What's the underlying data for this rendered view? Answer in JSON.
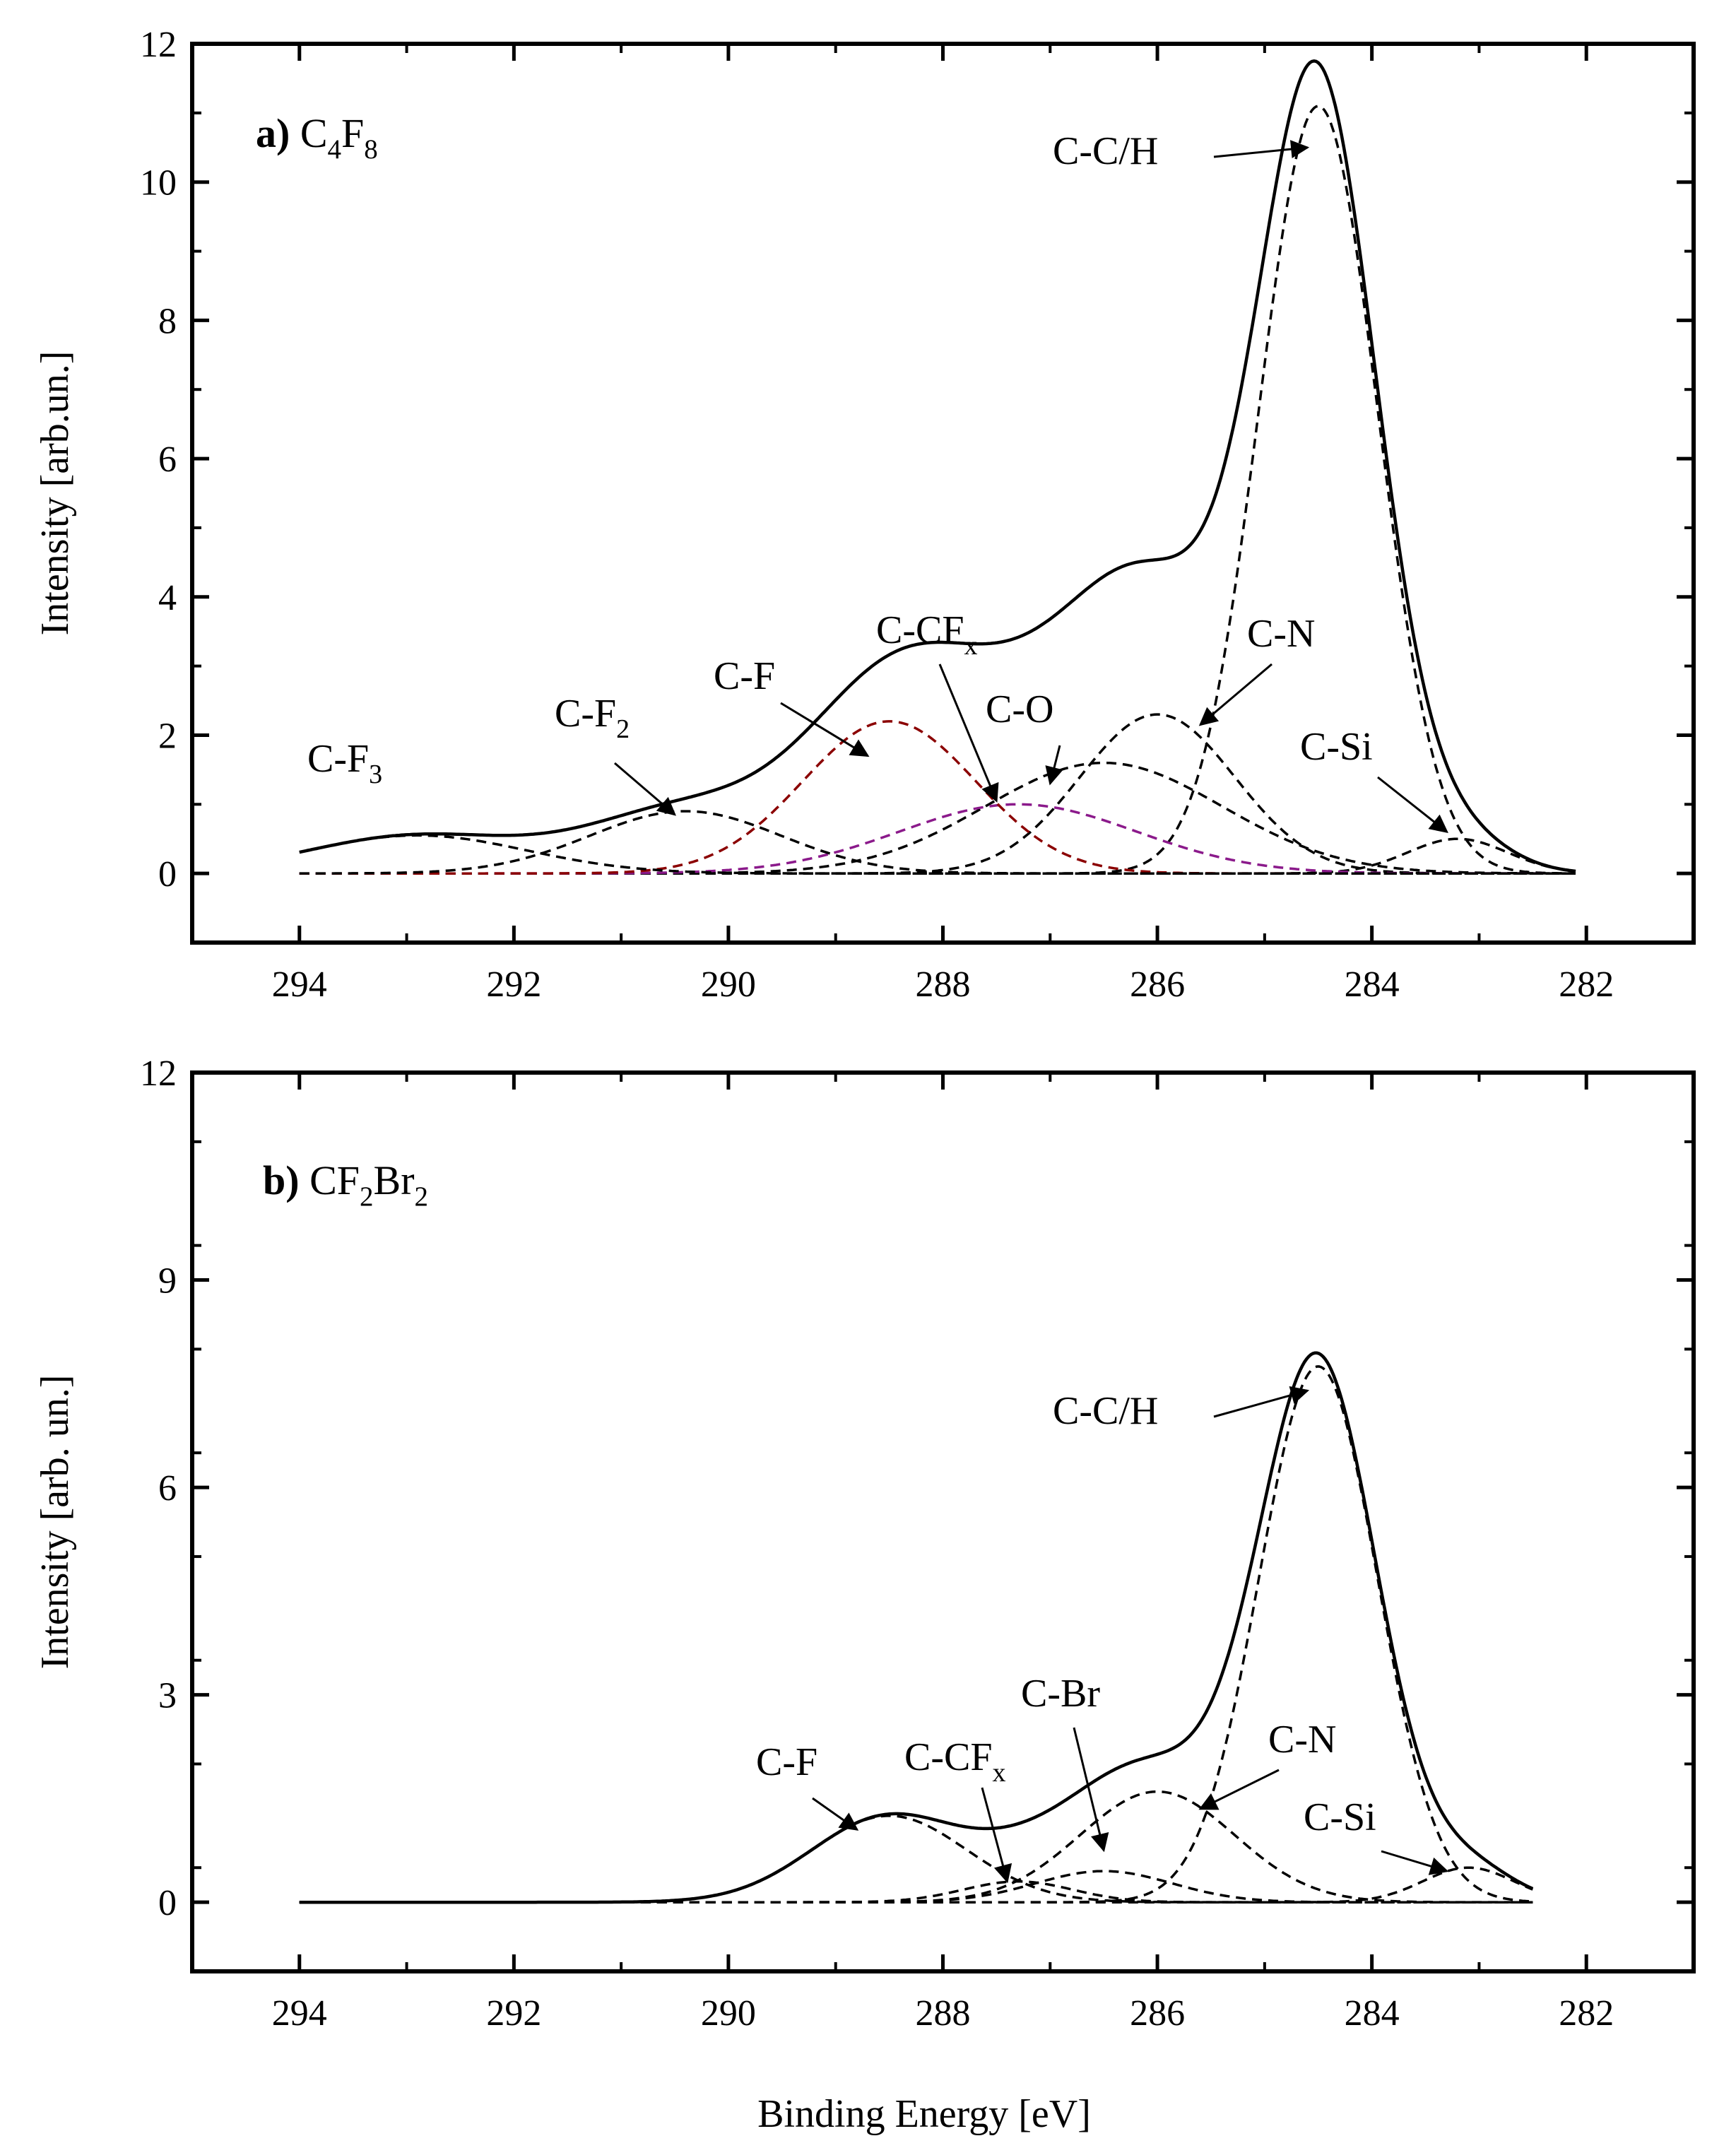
{
  "figure": {
    "xlabel": "Binding Energy [eV]"
  },
  "chart_data": [
    {
      "type": "line",
      "panel_letter": "a)",
      "panel_formula": [
        [
          "C",
          ""
        ],
        [
          "4",
          "sub"
        ],
        [
          "F",
          ""
        ],
        [
          "8",
          "sub"
        ]
      ],
      "xlabel": "Binding Energy [eV]",
      "ylabel": "Intensity [arb.un.]",
      "xlim": [
        295,
        281
      ],
      "ylim": [
        -1,
        12
      ],
      "xticks": [
        "294",
        "292",
        "290",
        "288",
        "286",
        "284",
        "282"
      ],
      "yticks": [
        "0",
        "2",
        "4",
        "6",
        "8",
        "10",
        "12"
      ],
      "x_range": [
        294,
        282.1
      ],
      "envelope": {
        "name": "Fit envelope",
        "color": "#000000"
      },
      "components": [
        {
          "name": "C-C/H",
          "center": 284.5,
          "height": 11.1,
          "fwhm": 1.3,
          "color": "#000000"
        },
        {
          "name": "C-Si",
          "center": 283.2,
          "height": 0.5,
          "fwhm": 1.1,
          "color": "#000000"
        },
        {
          "name": "C-N",
          "center": 286.0,
          "height": 2.3,
          "fwhm": 1.7,
          "color": "#000000"
        },
        {
          "name": "C-O",
          "center": 286.5,
          "height": 1.6,
          "fwhm": 2.6,
          "color": "#000000"
        },
        {
          "name": "C-CFx",
          "center": 287.3,
          "height": 1.0,
          "fwhm": 2.6,
          "color": "#8b1a8b"
        },
        {
          "name": "C-F",
          "center": 288.5,
          "height": 2.2,
          "fwhm": 1.9,
          "color": "#8b0000"
        },
        {
          "name": "C-F2",
          "center": 290.4,
          "height": 0.9,
          "fwhm": 2.1,
          "color": "#000000"
        },
        {
          "name": "C-F3",
          "center": 292.9,
          "height": 0.55,
          "fwhm": 2.4,
          "color": "#000000"
        }
      ],
      "annotations": [
        {
          "label": [
            [
              "C-C/H",
              ""
            ]
          ],
          "target": [
            284.6,
            10.5
          ]
        },
        {
          "label": [
            [
              "C-F",
              ""
            ],
            [
              "3",
              "sub"
            ]
          ],
          "target": null
        },
        {
          "label": [
            [
              "C-F",
              ""
            ],
            [
              "2",
              "sub"
            ]
          ],
          "target": [
            290.5,
            0.85
          ]
        },
        {
          "label": [
            [
              "C-F",
              ""
            ]
          ],
          "target": [
            288.7,
            1.7
          ]
        },
        {
          "label": [
            [
              "C-CF",
              ""
            ],
            [
              "x",
              "sub"
            ]
          ],
          "target": [
            287.5,
            1.05
          ]
        },
        {
          "label": [
            [
              "C-O",
              ""
            ]
          ],
          "target": [
            287.0,
            1.3
          ]
        },
        {
          "label": [
            [
              "C-N",
              ""
            ]
          ],
          "target": [
            285.6,
            2.15
          ]
        },
        {
          "label": [
            [
              "C-Si",
              ""
            ]
          ],
          "target": [
            283.3,
            0.6
          ]
        }
      ]
    },
    {
      "type": "line",
      "panel_letter": "b)",
      "panel_formula": [
        [
          "CF",
          ""
        ],
        [
          "2",
          "sub"
        ],
        [
          "Br",
          ""
        ],
        [
          "2",
          "sub"
        ]
      ],
      "xlabel": "Binding Energy [eV]",
      "ylabel": "Intensity [arb. un.]",
      "xlim": [
        295,
        281
      ],
      "ylim": [
        -1,
        12
      ],
      "xticks": [
        "294",
        "292",
        "290",
        "288",
        "286",
        "284",
        "282"
      ],
      "yticks": [
        "0",
        "3",
        "6",
        "9",
        "12"
      ],
      "x_range": [
        294,
        282.5
      ],
      "envelope": {
        "name": "Fit envelope",
        "color": "#000000"
      },
      "components": [
        {
          "name": "C-C/H",
          "center": 284.5,
          "height": 7.75,
          "fwhm": 1.3,
          "color": "#000000"
        },
        {
          "name": "C-Si",
          "center": 283.1,
          "height": 0.5,
          "fwhm": 1.0,
          "color": "#000000"
        },
        {
          "name": "C-N",
          "center": 286.0,
          "height": 1.6,
          "fwhm": 1.7,
          "color": "#000000"
        },
        {
          "name": "C-Br",
          "center": 286.5,
          "height": 0.45,
          "fwhm": 1.5,
          "color": "#000000"
        },
        {
          "name": "C-CFx",
          "center": 287.3,
          "height": 0.3,
          "fwhm": 1.2,
          "color": "#000000"
        },
        {
          "name": "C-F",
          "center": 288.5,
          "height": 1.25,
          "fwhm": 1.7,
          "color": "#000000"
        }
      ],
      "annotations": [
        {
          "label": [
            [
              "C-C/H",
              ""
            ]
          ],
          "target": [
            284.6,
            7.4
          ]
        },
        {
          "label": [
            [
              "C-F",
              ""
            ]
          ],
          "target": [
            288.8,
            1.05
          ]
        },
        {
          "label": [
            [
              "C-CF",
              ""
            ],
            [
              "x",
              "sub"
            ]
          ],
          "target": [
            287.4,
            0.3
          ]
        },
        {
          "label": [
            [
              "C-Br",
              ""
            ]
          ],
          "target": [
            286.5,
            0.75
          ]
        },
        {
          "label": [
            [
              "C-N",
              ""
            ]
          ],
          "target": [
            285.6,
            1.35
          ]
        },
        {
          "label": [
            [
              "C-Si",
              ""
            ]
          ],
          "target": [
            283.3,
            0.45
          ]
        }
      ]
    }
  ]
}
